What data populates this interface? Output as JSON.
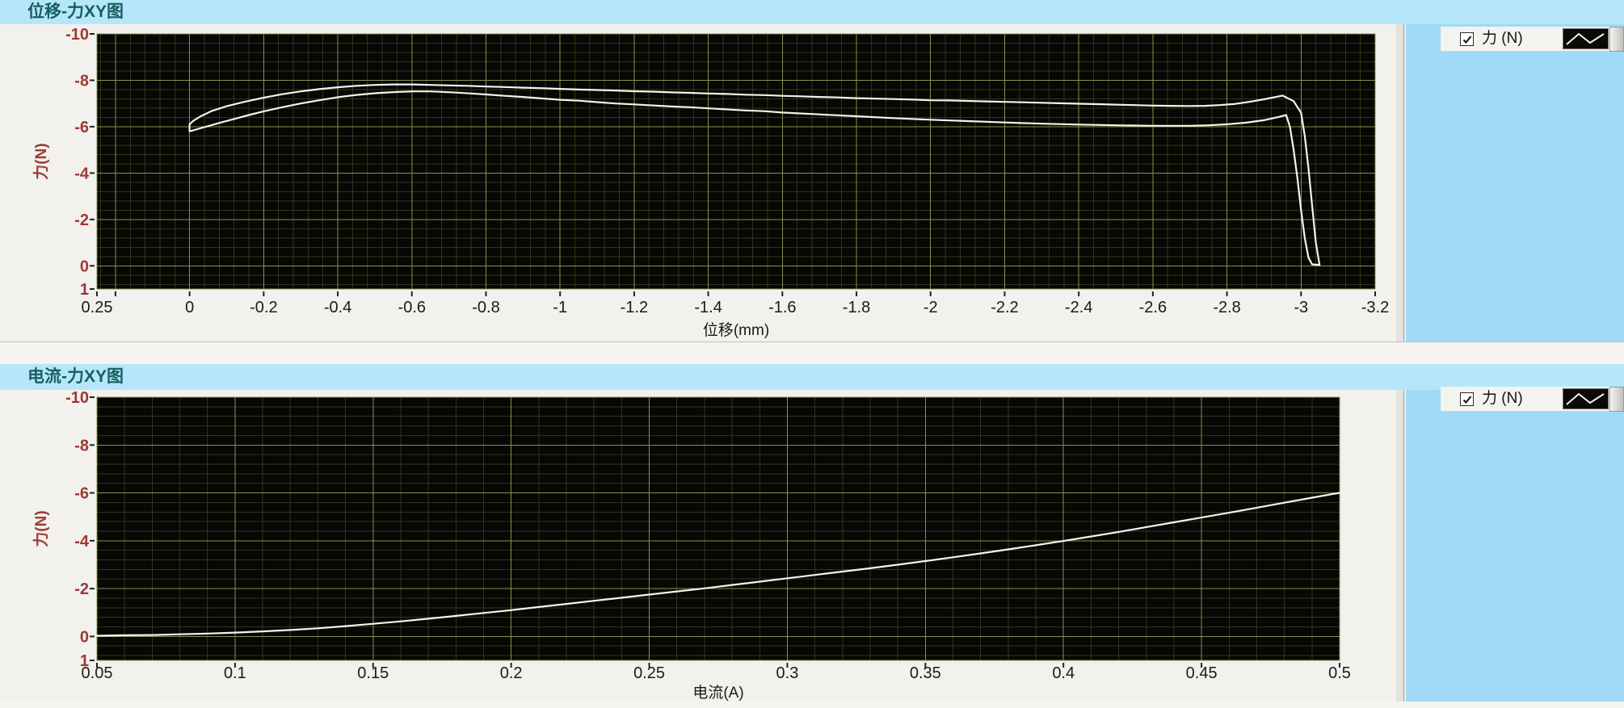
{
  "ui": {
    "background_color": "#a0daf7",
    "panel_color": "#f2f1ed",
    "titlebar_color": "#b6e6fa",
    "title_text_color": "#175f5d",
    "charts": [
      {
        "title": "位移-力XY图",
        "legend": {
          "label": "力 (N)",
          "checked": true
        }
      },
      {
        "title": "电流-力XY图",
        "legend": {
          "label": "力 (N)",
          "checked": true
        }
      }
    ]
  },
  "chart_data": [
    {
      "type": "line",
      "title": "位移-力XY图",
      "xlabel": "位移(mm)",
      "ylabel": "力(N)",
      "xlim": [
        0.25,
        -3.2
      ],
      "ylim": [
        -10,
        1
      ],
      "x_major_step": 0.2,
      "x_minor_step": 0.04,
      "y_major_step": 2,
      "y_minor_step": 0.4,
      "grid": {
        "bg": "#070704",
        "major_color": "#8e8e4e",
        "minor_color": "#34341f",
        "tick_color": "#222222"
      },
      "x_ticks": [
        {
          "v": 0.25,
          "l": "0.25"
        },
        {
          "v": 0.2,
          "l": ""
        },
        {
          "v": 0,
          "l": "0"
        },
        {
          "v": -0.2,
          "l": "-0.2"
        },
        {
          "v": -0.4,
          "l": "-0.4"
        },
        {
          "v": -0.6,
          "l": "-0.6"
        },
        {
          "v": -0.8,
          "l": "-0.8"
        },
        {
          "v": -1,
          "l": "-1"
        },
        {
          "v": -1.2,
          "l": "-1.2"
        },
        {
          "v": -1.4,
          "l": "-1.4"
        },
        {
          "v": -1.6,
          "l": "-1.6"
        },
        {
          "v": -1.8,
          "l": "-1.8"
        },
        {
          "v": -2,
          "l": "-2"
        },
        {
          "v": -2.2,
          "l": "-2.2"
        },
        {
          "v": -2.4,
          "l": "-2.4"
        },
        {
          "v": -2.6,
          "l": "-2.6"
        },
        {
          "v": -2.8,
          "l": "-2.8"
        },
        {
          "v": -3,
          "l": "-3"
        },
        {
          "v": -3.2,
          "l": "-3.2"
        }
      ],
      "y_ticks": [
        {
          "v": -10,
          "l": "-10"
        },
        {
          "v": -8,
          "l": "-8"
        },
        {
          "v": -6,
          "l": "-6"
        },
        {
          "v": -4,
          "l": "-4"
        },
        {
          "v": -2,
          "l": "-2"
        },
        {
          "v": 0,
          "l": "0"
        },
        {
          "v": 1,
          "l": "1"
        }
      ],
      "series": [
        {
          "name": "力 (N)",
          "color": "#f4f4ec",
          "points": [
            [
              0,
              -5.8
            ],
            [
              -0.04,
              -5.98
            ],
            [
              -0.08,
              -6.16
            ],
            [
              -0.12,
              -6.33
            ],
            [
              -0.16,
              -6.5
            ],
            [
              -0.2,
              -6.66
            ],
            [
              -0.25,
              -6.84
            ],
            [
              -0.3,
              -7.0
            ],
            [
              -0.35,
              -7.14
            ],
            [
              -0.4,
              -7.27
            ],
            [
              -0.45,
              -7.37
            ],
            [
              -0.5,
              -7.44
            ],
            [
              -0.55,
              -7.49
            ],
            [
              -0.6,
              -7.52
            ],
            [
              -0.65,
              -7.52
            ],
            [
              -0.68,
              -7.5
            ],
            [
              -0.72,
              -7.47
            ],
            [
              -0.76,
              -7.43
            ],
            [
              -0.8,
              -7.39
            ],
            [
              -0.85,
              -7.33
            ],
            [
              -0.9,
              -7.28
            ],
            [
              -0.95,
              -7.22
            ],
            [
              -1.0,
              -7.16
            ],
            [
              -1.05,
              -7.12
            ],
            [
              -1.1,
              -7.06
            ],
            [
              -1.15,
              -7.0
            ],
            [
              -1.2,
              -6.96
            ],
            [
              -1.3,
              -6.87
            ],
            [
              -1.35,
              -6.84
            ],
            [
              -1.4,
              -6.79
            ],
            [
              -1.5,
              -6.7
            ],
            [
              -1.55,
              -6.67
            ],
            [
              -1.6,
              -6.61
            ],
            [
              -1.7,
              -6.53
            ],
            [
              -1.8,
              -6.45
            ],
            [
              -1.9,
              -6.37
            ],
            [
              -2.0,
              -6.3
            ],
            [
              -2.1,
              -6.24
            ],
            [
              -2.2,
              -6.18
            ],
            [
              -2.3,
              -6.13
            ],
            [
              -2.4,
              -6.09
            ],
            [
              -2.5,
              -6.06
            ],
            [
              -2.6,
              -6.04
            ],
            [
              -2.7,
              -6.04
            ],
            [
              -2.75,
              -6.06
            ],
            [
              -2.8,
              -6.1
            ],
            [
              -2.85,
              -6.17
            ],
            [
              -2.9,
              -6.28
            ],
            [
              -2.94,
              -6.42
            ],
            [
              -2.96,
              -6.5
            ],
            [
              -2.97,
              -6.0
            ],
            [
              -2.98,
              -5.0
            ],
            [
              -2.99,
              -3.8
            ],
            [
              -3.0,
              -2.4
            ],
            [
              -3.01,
              -1.2
            ],
            [
              -3.02,
              -0.35
            ],
            [
              -3.03,
              -0.06
            ],
            [
              -3.05,
              -0.04
            ],
            [
              -3.04,
              -1.0
            ],
            [
              -3.03,
              -2.6
            ],
            [
              -3.02,
              -4.2
            ],
            [
              -3.01,
              -5.6
            ],
            [
              -3.0,
              -6.6
            ],
            [
              -2.98,
              -7.1
            ],
            [
              -2.95,
              -7.34
            ],
            [
              -2.9,
              -7.18
            ],
            [
              -2.86,
              -7.07
            ],
            [
              -2.82,
              -6.98
            ],
            [
              -2.78,
              -6.93
            ],
            [
              -2.74,
              -6.9
            ],
            [
              -2.7,
              -6.89
            ],
            [
              -2.65,
              -6.9
            ],
            [
              -2.6,
              -6.91
            ],
            [
              -2.55,
              -6.93
            ],
            [
              -2.5,
              -6.95
            ],
            [
              -2.45,
              -6.97
            ],
            [
              -2.4,
              -6.99
            ],
            [
              -2.35,
              -7.01
            ],
            [
              -2.3,
              -7.03
            ],
            [
              -2.25,
              -7.05
            ],
            [
              -2.2,
              -7.07
            ],
            [
              -2.15,
              -7.09
            ],
            [
              -2.1,
              -7.11
            ],
            [
              -2.05,
              -7.13
            ],
            [
              -2.0,
              -7.14
            ],
            [
              -1.95,
              -7.17
            ],
            [
              -1.9,
              -7.19
            ],
            [
              -1.85,
              -7.21
            ],
            [
              -1.8,
              -7.23
            ],
            [
              -1.75,
              -7.26
            ],
            [
              -1.7,
              -7.28
            ],
            [
              -1.65,
              -7.31
            ],
            [
              -1.6,
              -7.33
            ],
            [
              -1.55,
              -7.36
            ],
            [
              -1.5,
              -7.38
            ],
            [
              -1.45,
              -7.41
            ],
            [
              -1.4,
              -7.43
            ],
            [
              -1.35,
              -7.46
            ],
            [
              -1.3,
              -7.48
            ],
            [
              -1.25,
              -7.51
            ],
            [
              -1.2,
              -7.53
            ],
            [
              -1.15,
              -7.56
            ],
            [
              -1.1,
              -7.58
            ],
            [
              -1.05,
              -7.6
            ],
            [
              -1.0,
              -7.63
            ],
            [
              -0.95,
              -7.66
            ],
            [
              -0.9,
              -7.68
            ],
            [
              -0.85,
              -7.71
            ],
            [
              -0.8,
              -7.73
            ],
            [
              -0.75,
              -7.76
            ],
            [
              -0.7,
              -7.78
            ],
            [
              -0.65,
              -7.8
            ],
            [
              -0.6,
              -7.82
            ],
            [
              -0.55,
              -7.82
            ],
            [
              -0.5,
              -7.8
            ],
            [
              -0.45,
              -7.76
            ],
            [
              -0.4,
              -7.7
            ],
            [
              -0.35,
              -7.62
            ],
            [
              -0.3,
              -7.52
            ],
            [
              -0.25,
              -7.4
            ],
            [
              -0.2,
              -7.25
            ],
            [
              -0.15,
              -7.08
            ],
            [
              -0.1,
              -6.88
            ],
            [
              -0.06,
              -6.68
            ],
            [
              -0.03,
              -6.45
            ],
            [
              -0.01,
              -6.25
            ],
            [
              0,
              -6.1
            ],
            [
              0,
              -5.8
            ]
          ]
        }
      ]
    },
    {
      "type": "line",
      "title": "电流-力XY图",
      "xlabel": "电流(A)",
      "ylabel": "力(N)",
      "xlim": [
        0.05,
        0.5
      ],
      "ylim": [
        -10,
        1
      ],
      "x_major_step": 0.05,
      "x_minor_step": 0.01,
      "y_major_step": 2,
      "y_minor_step": 0.4,
      "grid": {
        "bg": "#070704",
        "major_color": "#8e8e4e",
        "minor_color": "#34341f",
        "tick_color": "#222222"
      },
      "x_ticks": [
        {
          "v": 0.05,
          "l": "0.05"
        },
        {
          "v": 0.1,
          "l": "0.1"
        },
        {
          "v": 0.15,
          "l": "0.15"
        },
        {
          "v": 0.2,
          "l": "0.2"
        },
        {
          "v": 0.25,
          "l": "0.25"
        },
        {
          "v": 0.3,
          "l": "0.3"
        },
        {
          "v": 0.35,
          "l": "0.35"
        },
        {
          "v": 0.4,
          "l": "0.4"
        },
        {
          "v": 0.45,
          "l": "0.45"
        },
        {
          "v": 0.5,
          "l": "0.5"
        }
      ],
      "y_ticks": [
        {
          "v": -10,
          "l": "-10"
        },
        {
          "v": -8,
          "l": "-8"
        },
        {
          "v": -6,
          "l": "-6"
        },
        {
          "v": -4,
          "l": "-4"
        },
        {
          "v": -2,
          "l": "-2"
        },
        {
          "v": 0,
          "l": "0"
        },
        {
          "v": 1,
          "l": "1"
        }
      ],
      "series": [
        {
          "name": "力 (N)",
          "color": "#f4f4ec",
          "points": [
            [
              0.05,
              -0.03
            ],
            [
              0.06,
              -0.05
            ],
            [
              0.07,
              -0.06
            ],
            [
              0.08,
              -0.09
            ],
            [
              0.09,
              -0.12
            ],
            [
              0.1,
              -0.16
            ],
            [
              0.11,
              -0.21
            ],
            [
              0.12,
              -0.27
            ],
            [
              0.13,
              -0.34
            ],
            [
              0.14,
              -0.43
            ],
            [
              0.15,
              -0.53
            ],
            [
              0.16,
              -0.63
            ],
            [
              0.17,
              -0.74
            ],
            [
              0.18,
              -0.86
            ],
            [
              0.19,
              -0.98
            ],
            [
              0.2,
              -1.1
            ],
            [
              0.21,
              -1.23
            ],
            [
              0.22,
              -1.36
            ],
            [
              0.23,
              -1.49
            ],
            [
              0.24,
              -1.62
            ],
            [
              0.25,
              -1.75
            ],
            [
              0.26,
              -1.88
            ],
            [
              0.27,
              -2.01
            ],
            [
              0.28,
              -2.15
            ],
            [
              0.29,
              -2.29
            ],
            [
              0.3,
              -2.43
            ],
            [
              0.31,
              -2.57
            ],
            [
              0.32,
              -2.71
            ],
            [
              0.33,
              -2.85
            ],
            [
              0.34,
              -3.0
            ],
            [
              0.35,
              -3.15
            ],
            [
              0.36,
              -3.31
            ],
            [
              0.37,
              -3.47
            ],
            [
              0.38,
              -3.64
            ],
            [
              0.39,
              -3.81
            ],
            [
              0.4,
              -3.99
            ],
            [
              0.41,
              -4.18
            ],
            [
              0.42,
              -4.37
            ],
            [
              0.43,
              -4.57
            ],
            [
              0.44,
              -4.77
            ],
            [
              0.45,
              -4.97
            ],
            [
              0.46,
              -5.17
            ],
            [
              0.47,
              -5.38
            ],
            [
              0.48,
              -5.59
            ],
            [
              0.49,
              -5.8
            ],
            [
              0.5,
              -6.0
            ]
          ]
        }
      ]
    }
  ]
}
